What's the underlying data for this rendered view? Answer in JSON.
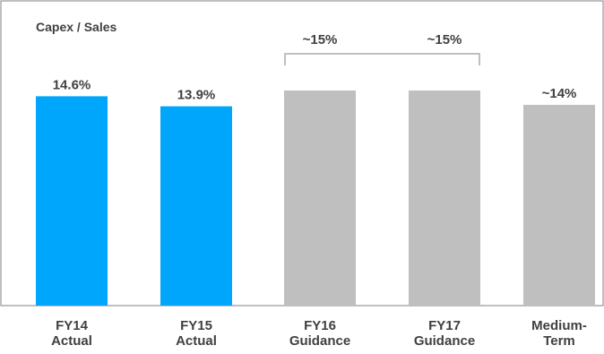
{
  "chart_data": {
    "type": "bar",
    "title": "Capex / Sales",
    "categories": [
      [
        "FY14",
        "Actual"
      ],
      [
        "FY15",
        "Actual"
      ],
      [
        "FY16",
        "Guidance"
      ],
      [
        "FY17",
        "Guidance"
      ],
      [
        "Medium-",
        "Term"
      ]
    ],
    "values": [
      14.6,
      13.9,
      15,
      15,
      14
    ],
    "value_labels": [
      "14.6%",
      "13.9%",
      "",
      "",
      "~14%"
    ],
    "group_annotation": {
      "labels": [
        "~15%",
        "~15%"
      ],
      "spans_categories": [
        2,
        3
      ]
    },
    "ylim": [
      0,
      18
    ],
    "grid": false,
    "colors": {
      "actual": "#00A6FB",
      "guidance": "#BFBFBF",
      "text": "#404040",
      "frame": "#808080",
      "bracket": "#BFBFBF"
    },
    "bar_color_keys": [
      "actual",
      "actual",
      "guidance",
      "guidance",
      "guidance"
    ]
  }
}
